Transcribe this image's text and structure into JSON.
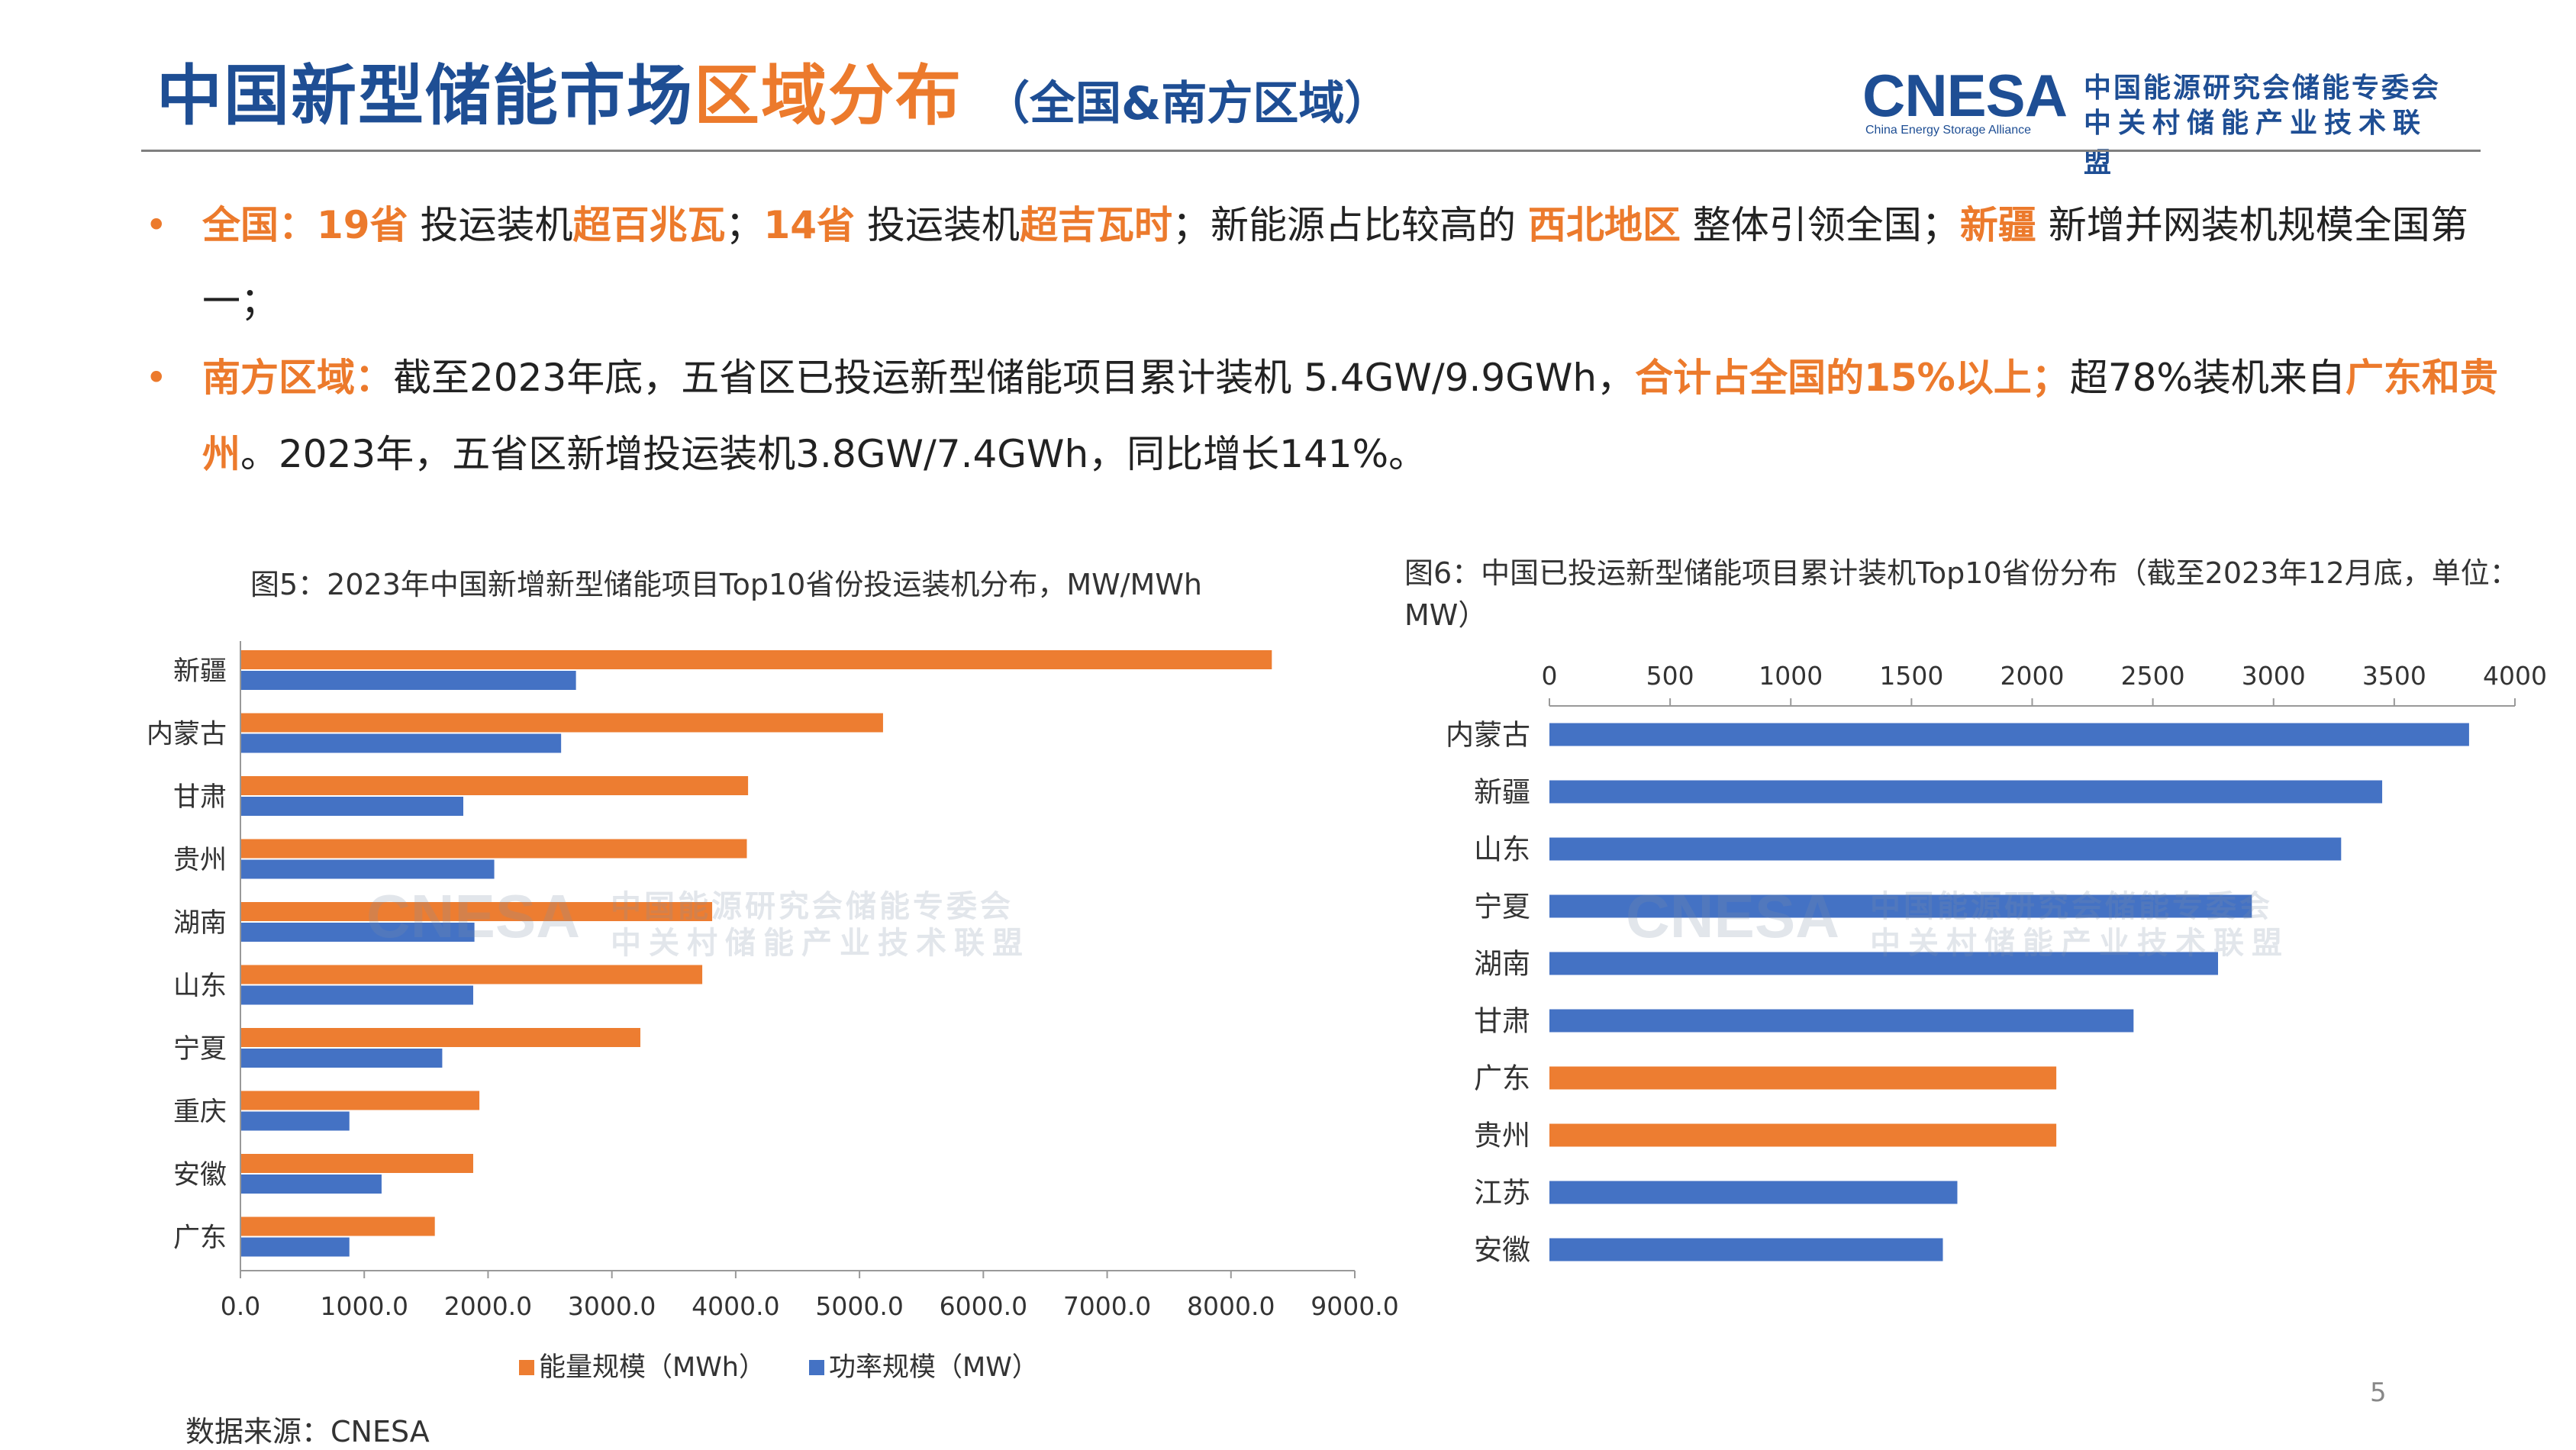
{
  "header": {
    "title_main": "中国新型储能市场",
    "title_highlight": "区域分布",
    "title_sub": "（全国&南方区域）"
  },
  "logo": {
    "mark": "CNESA",
    "sub_en": "China Energy Storage Alliance",
    "cn_line1": "中国能源研究会储能专委会",
    "cn_line2": "中关村储能产业技术联盟"
  },
  "bullets": [
    {
      "segments": [
        {
          "text": "全国：",
          "hl": true
        },
        {
          "text": "19省",
          "hl": true
        },
        {
          "text": " 投运装机",
          "hl": false
        },
        {
          "text": "超百兆瓦",
          "hl": true
        },
        {
          "text": "；",
          "hl": false
        },
        {
          "text": "14省",
          "hl": true
        },
        {
          "text": " 投运装机",
          "hl": false
        },
        {
          "text": "超吉瓦时",
          "hl": true
        },
        {
          "text": "；新能源占比较高的 ",
          "hl": false
        },
        {
          "text": "西北地区",
          "hl": true
        },
        {
          "text": " 整体引领全国；",
          "hl": false
        },
        {
          "text": "新疆",
          "hl": true
        },
        {
          "text": " 新增并网装机规模全国第一；",
          "hl": false
        }
      ]
    },
    {
      "segments": [
        {
          "text": "南方区域：",
          "hl": true
        },
        {
          "text": "截至2023年底，五省区已投运新型储能项目累计装机 5.4GW/9.9GWh，",
          "hl": false
        },
        {
          "text": "合计占全国的15%以上；",
          "hl": true
        },
        {
          "text": "超78%装机来自",
          "hl": false
        },
        {
          "text": "广东和贵州",
          "hl": true
        },
        {
          "text": "。2023年，五省区新增投运装机3.8GW/7.4GWh，同比增长141%。",
          "hl": false
        }
      ]
    }
  ],
  "chart_data": [
    {
      "type": "bar",
      "orientation": "horizontal",
      "title": "图5：2023年中国新增新型储能项目Top10省份投运装机分布，MW/MWh",
      "categories": [
        "新疆",
        "内蒙古",
        "甘肃",
        "贵州",
        "湖南",
        "山东",
        "宁夏",
        "重庆",
        "安徽",
        "广东"
      ],
      "series": [
        {
          "name": "能量规模（MWh）",
          "color": "#ed7d31",
          "values": [
            8330,
            5190,
            4100,
            4090,
            3810,
            3730,
            3230,
            1930,
            1880,
            1570
          ]
        },
        {
          "name": "功率规模（MW）",
          "color": "#4472c4",
          "values": [
            2710,
            2590,
            1800,
            2050,
            1890,
            1880,
            1630,
            880,
            1140,
            880
          ]
        }
      ],
      "xlim": [
        0,
        9000
      ],
      "xticks": [
        "0.0",
        "1000.0",
        "2000.0",
        "3000.0",
        "4000.0",
        "5000.0",
        "6000.0",
        "7000.0",
        "8000.0",
        "9000.0"
      ],
      "legend": "bottom",
      "grid": false
    },
    {
      "type": "bar",
      "orientation": "horizontal",
      "title": "图6：中国已投运新型储能项目累计装机Top10省份分布（截至2023年12月底，单位：MW）",
      "categories": [
        "内蒙古",
        "新疆",
        "山东",
        "宁夏",
        "湖南",
        "甘肃",
        "广东",
        "贵州",
        "江苏",
        "安徽"
      ],
      "values": [
        3810,
        3450,
        3280,
        2910,
        2770,
        2420,
        2100,
        2100,
        1690,
        1630
      ],
      "bar_colors": [
        "#4472c4",
        "#4472c4",
        "#4472c4",
        "#4472c4",
        "#4472c4",
        "#4472c4",
        "#ed7d31",
        "#ed7d31",
        "#4472c4",
        "#4472c4"
      ],
      "xlim": [
        0,
        4000
      ],
      "xticks": [
        "0",
        "500",
        "1000",
        "1500",
        "2000",
        "2500",
        "3000",
        "3500",
        "4000"
      ],
      "x_axis_position": "top",
      "legend": "none",
      "grid": false
    }
  ],
  "source": "数据来源：CNESA",
  "page_number": "5",
  "colors": {
    "title_blue": "#1e4e94",
    "accent_orange": "#ec7a2c",
    "bar_orange": "#ed7d31",
    "bar_blue": "#4472c4"
  }
}
